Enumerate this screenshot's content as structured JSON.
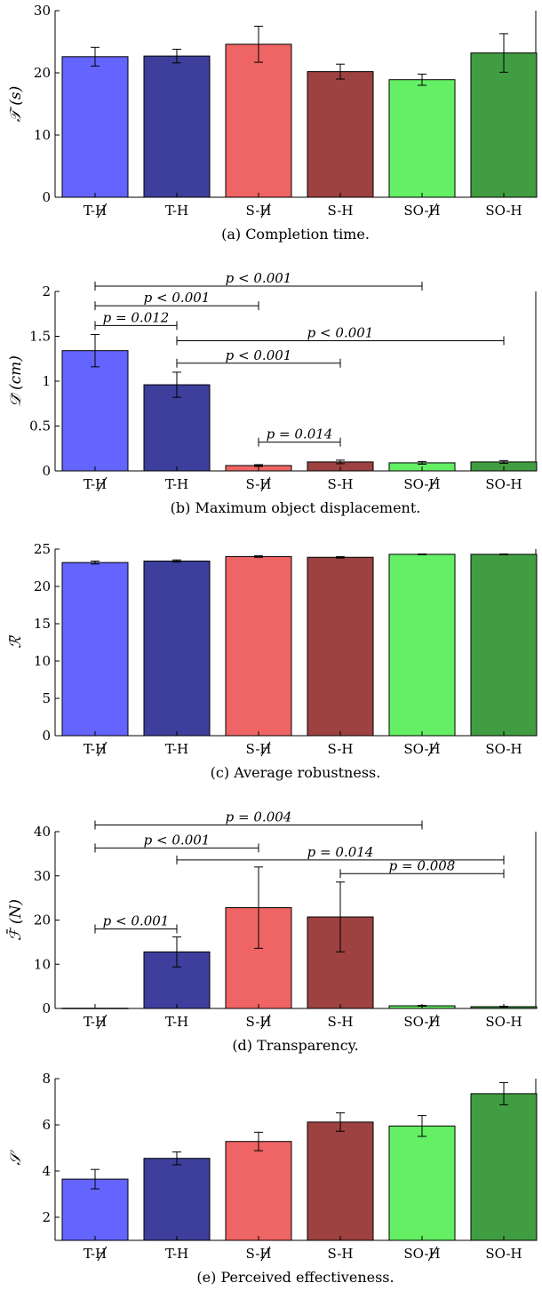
{
  "figure": {
    "categories": [
      "T-H",
      "T-H",
      "S-H",
      "S-H",
      "SO-H",
      "SO-H"
    ],
    "category_struck": [
      true,
      false,
      true,
      false,
      true,
      false
    ],
    "bar_colors": [
      "#6464ff",
      "#3e3e9c",
      "#ef6464",
      "#9d4141",
      "#64ef64",
      "#419d41"
    ]
  },
  "chart_data": [
    {
      "type": "bar",
      "title": "(a) Completion time.",
      "ylabel": "𝒯 (s)",
      "ylim": [
        0,
        30
      ],
      "yticks": [
        0,
        10,
        20,
        30
      ],
      "categories": [
        "T-H",
        "T-H",
        "S-H",
        "S-H",
        "SO-H",
        "SO-H"
      ],
      "values": [
        22.6,
        22.7,
        24.6,
        20.2,
        18.9,
        23.2
      ],
      "errors": [
        1.5,
        1.1,
        2.9,
        1.2,
        0.9,
        3.1
      ],
      "annotations": []
    },
    {
      "type": "bar",
      "title": "(b) Maximum object displacement.",
      "ylabel": "𝒟̄ (cm)",
      "ylim": [
        0,
        2
      ],
      "yticks": [
        0,
        0.5,
        1,
        1.5,
        2
      ],
      "categories": [
        "T-H",
        "T-H",
        "S-H",
        "S-H",
        "SO-H",
        "SO-H"
      ],
      "values": [
        1.34,
        0.96,
        0.06,
        0.1,
        0.09,
        0.1
      ],
      "errors": [
        0.18,
        0.14,
        0.01,
        0.02,
        0.015,
        0.015
      ],
      "annotations": [
        {
          "from": 0,
          "to": 4,
          "text": "p < 0.001",
          "y": 2.06
        },
        {
          "from": 0,
          "to": 2,
          "text": "p < 0.001",
          "y": 1.84
        },
        {
          "from": 0,
          "to": 1,
          "text": "p = 0.012",
          "y": 1.62
        },
        {
          "from": 1,
          "to": 5,
          "text": "p < 0.001",
          "y": 1.45
        },
        {
          "from": 1,
          "to": 3,
          "text": "p < 0.001",
          "y": 1.2
        },
        {
          "from": 2,
          "to": 3,
          "text": "p = 0.014",
          "y": 0.32
        }
      ]
    },
    {
      "type": "bar",
      "title": "(c) Average robustness.",
      "ylabel": "ℛ̄",
      "ylim": [
        0,
        25
      ],
      "yticks": [
        0,
        5,
        10,
        15,
        20,
        25
      ],
      "categories": [
        "T-H",
        "T-H",
        "S-H",
        "S-H",
        "SO-H",
        "SO-H"
      ],
      "values": [
        23.2,
        23.4,
        24.0,
        23.9,
        24.3,
        24.3
      ],
      "errors": [
        0.2,
        0.15,
        0.1,
        0.1,
        0.05,
        0.05
      ],
      "annotations": []
    },
    {
      "type": "bar",
      "title": "(d) Transparency.",
      "ylabel": "ℱ̄ (N)",
      "ylim": [
        0,
        40
      ],
      "yticks": [
        0,
        10,
        20,
        30,
        40
      ],
      "categories": [
        "T-H",
        "T-H",
        "S-H",
        "S-H",
        "SO-H",
        "SO-H"
      ],
      "values": [
        0.05,
        12.8,
        22.8,
        20.7,
        0.6,
        0.4
      ],
      "errors": [
        0,
        3.4,
        9.2,
        7.9,
        0.1,
        0.1
      ],
      "annotations": [
        {
          "from": 0,
          "to": 4,
          "text": "p = 0.004",
          "y": 41.5
        },
        {
          "from": 0,
          "to": 2,
          "text": "p < 0.001",
          "y": 36.3
        },
        {
          "from": 1,
          "to": 5,
          "text": "p = 0.014",
          "y": 33.6
        },
        {
          "from": 3,
          "to": 5,
          "text": "p = 0.008",
          "y": 30.5
        },
        {
          "from": 0,
          "to": 1,
          "text": "p < 0.001",
          "y": 18.0
        }
      ]
    },
    {
      "type": "bar",
      "title": "(e) Perceived effectiveness.",
      "ylabel": "𝒮",
      "ylim": [
        1,
        8
      ],
      "yticks": [
        2,
        4,
        6,
        8
      ],
      "categories": [
        "T-H",
        "T-H",
        "S-H",
        "S-H",
        "SO-H",
        "SO-H"
      ],
      "values": [
        3.65,
        4.55,
        5.28,
        6.12,
        5.95,
        7.35
      ],
      "errors": [
        0.42,
        0.28,
        0.4,
        0.4,
        0.45,
        0.48
      ],
      "annotations": []
    }
  ]
}
